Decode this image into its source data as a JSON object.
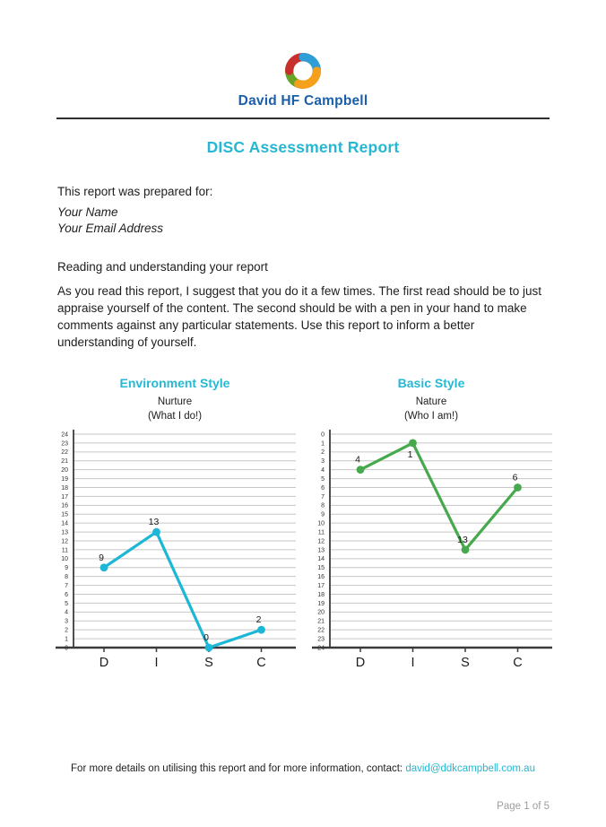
{
  "brand": {
    "logo_text": "David HF Campbell"
  },
  "title": "DISC Assessment Report",
  "prepared_for": {
    "label": "This report was prepared for:",
    "name": "Your Name",
    "email": "Your Email Address"
  },
  "reading": {
    "heading": "Reading and understanding your report",
    "body": "As you read this report, I suggest that you do it a few times.  The first read should be to just appraise yourself of the content. The second should be with a pen in your hand to make comments against any particular statements. Use this report to inform a better understanding of yourself."
  },
  "chart_data": [
    {
      "type": "line",
      "title": "Environment Style",
      "subtitle": "Nurture",
      "subtitle2": "(What I do!)",
      "categories": [
        "D",
        "I",
        "S",
        "C"
      ],
      "values": [
        9,
        13,
        0,
        2
      ],
      "ylim": [
        0,
        24
      ],
      "ytick_step": 1,
      "y_axis_inverted": false,
      "grid": true,
      "legend": "none",
      "line_color": "#1cb6d6"
    },
    {
      "type": "line",
      "title": "Basic Style",
      "subtitle": "Nature",
      "subtitle2": "(Who I am!)",
      "categories": [
        "D",
        "I",
        "S",
        "C"
      ],
      "values": [
        4,
        1,
        13,
        6
      ],
      "ylim": [
        0,
        24
      ],
      "ytick_step": 1,
      "y_axis_inverted": true,
      "grid": true,
      "legend": "none",
      "line_color": "#47a94e"
    }
  ],
  "footer": {
    "contact_text": "For more details on utilising this report and for more information, contact:",
    "contact_email": "david@ddkcampbell.com.au",
    "page_label": "Page 1 of 5"
  },
  "colors": {
    "accent_cyan": "#26b7d2",
    "logo_blue": "#1b5fa9",
    "line_left": "#1cb6d6",
    "line_right": "#47a94e",
    "grid_gray": "#c6c6c6",
    "page_number_gray": "#9e9e9e"
  },
  "icons": {
    "brand_logo": "rosette-knot-icon"
  }
}
